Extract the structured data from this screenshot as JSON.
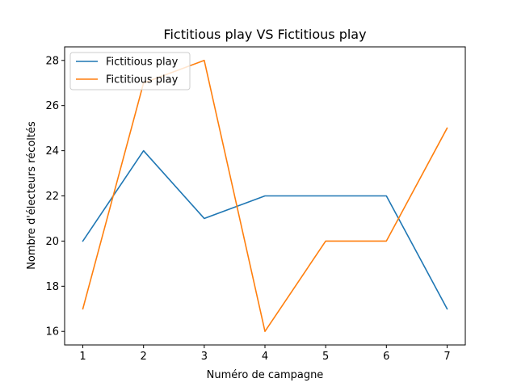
{
  "chart_data": {
    "type": "line",
    "title": "Fictitious play VS Fictitious play",
    "xlabel": "Numéro de campagne",
    "ylabel": "Nombre d'électeurs récoltés",
    "x": [
      1,
      2,
      3,
      4,
      5,
      6,
      7
    ],
    "xticks": [
      1,
      2,
      3,
      4,
      5,
      6,
      7
    ],
    "yticks": [
      16,
      18,
      20,
      22,
      24,
      26,
      28
    ],
    "xlim": [
      0.7,
      7.3
    ],
    "ylim": [
      15.4,
      28.6
    ],
    "grid": false,
    "legend_position": "top-left",
    "series": [
      {
        "name": "Fictitious play",
        "color": "#1f77b4",
        "values": [
          20,
          24,
          21,
          22,
          22,
          22,
          17
        ]
      },
      {
        "name": "Fictitious play",
        "color": "#ff7f0e",
        "values": [
          17,
          27,
          28,
          16,
          20,
          20,
          25
        ]
      }
    ]
  }
}
